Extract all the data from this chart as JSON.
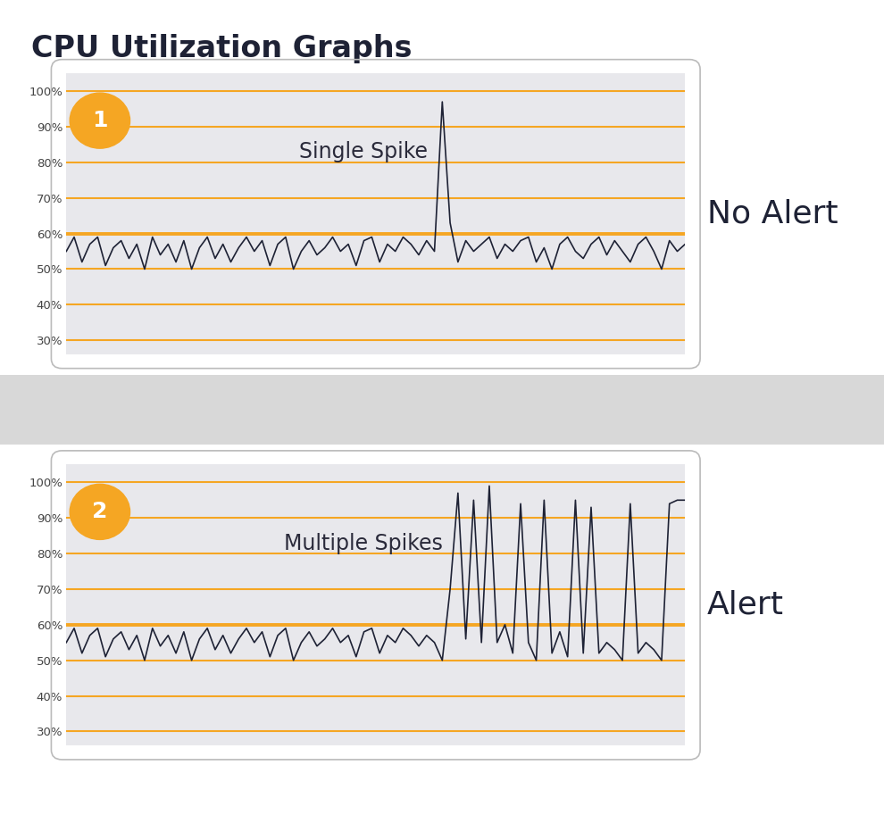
{
  "title": "CPU Utilization Graphs",
  "title_color": "#1e2235",
  "title_fontsize": 24,
  "background_color": "#ffffff",
  "panel_bg": "#e8e8ec",
  "separator_color": "#d8d8d8",
  "orange_color": "#F5A623",
  "line_color": "#1e2235",
  "yticks": [
    30,
    40,
    50,
    60,
    70,
    80,
    90,
    100
  ],
  "ylim": [
    26,
    105
  ],
  "hline_values": [
    30,
    40,
    50,
    60,
    70,
    80,
    90,
    100
  ],
  "threshold_value": 60,
  "graph1_label": "Single Spike",
  "graph2_label": "Multiple Spikes",
  "label1": "No Alert",
  "label2": "Alert",
  "label_fontsize": 26,
  "graph1_y": [
    55,
    59,
    52,
    57,
    59,
    51,
    56,
    58,
    53,
    57,
    50,
    59,
    54,
    57,
    52,
    58,
    50,
    56,
    59,
    53,
    57,
    52,
    56,
    59,
    55,
    58,
    51,
    57,
    59,
    50,
    55,
    58,
    54,
    56,
    59,
    55,
    57,
    51,
    58,
    59,
    52,
    57,
    55,
    59,
    57,
    54,
    58,
    55,
    97,
    63,
    52,
    58,
    55,
    57,
    59,
    53,
    57,
    55,
    58,
    59,
    52,
    56,
    50,
    57,
    59,
    55,
    53,
    57,
    59,
    54,
    58,
    55,
    52,
    57,
    59,
    55,
    50,
    58,
    55,
    57
  ],
  "graph2_y": [
    55,
    59,
    52,
    57,
    59,
    51,
    56,
    58,
    53,
    57,
    50,
    59,
    54,
    57,
    52,
    58,
    50,
    56,
    59,
    53,
    57,
    52,
    56,
    59,
    55,
    58,
    51,
    57,
    59,
    50,
    55,
    58,
    54,
    56,
    59,
    55,
    57,
    51,
    58,
    59,
    52,
    57,
    55,
    59,
    57,
    54,
    57,
    55,
    50,
    70,
    97,
    56,
    95,
    55,
    99,
    55,
    60,
    52,
    94,
    55,
    50,
    95,
    52,
    58,
    51,
    95,
    52,
    93,
    52,
    55,
    53,
    50,
    94,
    52,
    55,
    53,
    50,
    94,
    95,
    95
  ]
}
